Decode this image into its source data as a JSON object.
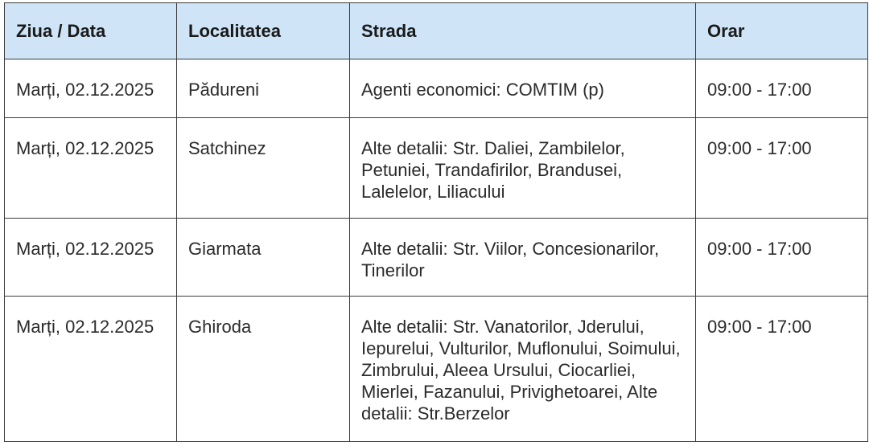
{
  "table": {
    "header": [
      "Ziua / Data",
      "Localitatea",
      "Strada",
      "Orar"
    ],
    "rows": [
      {
        "date": "Marți, 02.12.2025",
        "locality": "Pădureni",
        "street": [
          "Agenti economici: COMTIM (p)"
        ],
        "hours": "09:00 - 17:00"
      },
      {
        "date": "Marți, 02.12.2025",
        "locality": "Satchinez",
        "street": [
          "Alte detalii: Str. Daliei, Zambilelor,",
          "Petuniei, Trandafirilor,  Brandusei,",
          "Lalelelor, Liliacului"
        ],
        "hours": "09:00 - 17:00"
      },
      {
        "date": "Marți, 02.12.2025",
        "locality": "Giarmata",
        "street": [
          "Alte detalii: Str. Viilor, Concesionarilor,",
          "Tinerilor"
        ],
        "hours": "09:00 - 17:00"
      },
      {
        "date": "Marți, 02.12.2025",
        "locality": "Ghiroda",
        "street": [
          "Alte detalii: Str. Vanatorilor, Jderului,",
          "Iepurelui, Vulturilor, Muflonului, Soimului,",
          "Zimbrului, Aleea Ursului, Ciocarliei,",
          "Mierlei, Fazanului, Privighetoarei, Alte",
          "detalii: Str.Berzelor"
        ],
        "hours": "09:00 - 17:00"
      }
    ]
  }
}
